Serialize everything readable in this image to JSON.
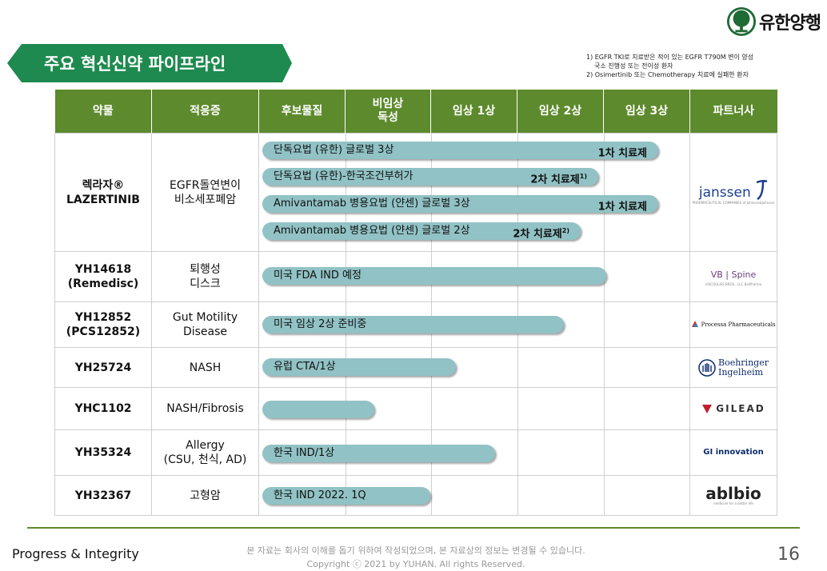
{
  "brand": {
    "name": "유한양행"
  },
  "title": "주요 혁신신약 파이프라인",
  "notes": [
    "1) EGFR TKI로 치료받은 적이 있는 EGFR T790M 변이 양성",
    "국소 진행성 또는 전이성 환자",
    "2) Osimertinib 또는 Chemotherapy 치료에 실패한 환자"
  ],
  "columns": [
    "약물",
    "적응증",
    "후보물질",
    "비임상\n독성",
    "임상 1상",
    "임상 2상",
    "임상 3상",
    "파트너사"
  ],
  "rows": [
    {
      "drug": "렉라자®\nLAZERTINIB",
      "indication": "EGFR돌연변이\n비소세포폐암",
      "partner": "janssen",
      "partner_sub": "PHARMACEUTICAL COMPANIES of Johnson&Johnson",
      "bars": [
        {
          "label": "단독요법 (유한) 글로벌 3상",
          "line": "1차 치료제",
          "sup": "",
          "progress": 0.92
        },
        {
          "label": "단독요법 (유한)-한국조건부허가",
          "line": "2차 치료제",
          "sup": "1)",
          "progress": 0.78
        },
        {
          "label": "Amivantamab 병용요법 (얀센) 글로벌 3상",
          "line": "1차 치료제",
          "sup": "",
          "progress": 0.92
        },
        {
          "label": "Amivantamab 병용요법 (얀센) 글로벌 2상",
          "line": "2차 치료제",
          "sup": "2)",
          "progress": 0.74
        }
      ]
    },
    {
      "drug": "YH14618\n(Remedisc)",
      "indication": "퇴행성\n디스크",
      "partner": "VB | Spine",
      "partner_sub": "VISCOGLISS BROS., LLC  BioPharma",
      "bars": [
        {
          "label": "미국 FDA IND 예정",
          "line": "",
          "sup": "",
          "progress": 0.8
        }
      ]
    },
    {
      "drug": "YH12852\n(PCS12852)",
      "indication": "Gut Motility\nDisease",
      "partner": "Processa Pharmaceuticals",
      "partner_sub": "",
      "bars": [
        {
          "label": "미국 임상 2상 준비중",
          "line": "",
          "sup": "",
          "progress": 0.7
        }
      ]
    },
    {
      "drug": "YH25724",
      "indication": "NASH",
      "partner": "Boehringer\nIngelheim",
      "partner_sub": "",
      "bars": [
        {
          "label": "유럽 CTA/1상",
          "line": "",
          "sup": "",
          "progress": 0.45
        }
      ]
    },
    {
      "drug": "YHC1102",
      "indication": "NASH/Fibrosis",
      "partner": "GILEAD",
      "partner_sub": "",
      "bars": [
        {
          "label": "",
          "line": "",
          "sup": "",
          "progress": 0.26
        }
      ]
    },
    {
      "drug": "YH35324",
      "indication": "Allergy\n(CSU, 천식, AD)",
      "partner": "GI innovation",
      "partner_sub": "",
      "bars": [
        {
          "label": "한국 IND/1상",
          "line": "",
          "sup": "",
          "progress": 0.54
        }
      ]
    },
    {
      "drug": "YH32367",
      "indication": "고형암",
      "partner": "ablbio",
      "partner_sub": "medicine for a better life",
      "bars": [
        {
          "label": "한국 IND 2022. 1Q",
          "line": "",
          "sup": "",
          "progress": 0.39
        }
      ]
    }
  ],
  "footer": {
    "left": "Progress & Integrity",
    "line1": "본 자료는 회사의 이해를 돕기 위하여 작성되었으며, 본 자료상의 정보는 변경될 수 있습니다.",
    "line2": "Copyright ⓒ 2021 by YUHAN.  All rights Reserved.",
    "page": "16"
  },
  "colors": {
    "header": "#5d8a2d",
    "bar": "#91c2c5",
    "banner": "#1e8a4f"
  }
}
